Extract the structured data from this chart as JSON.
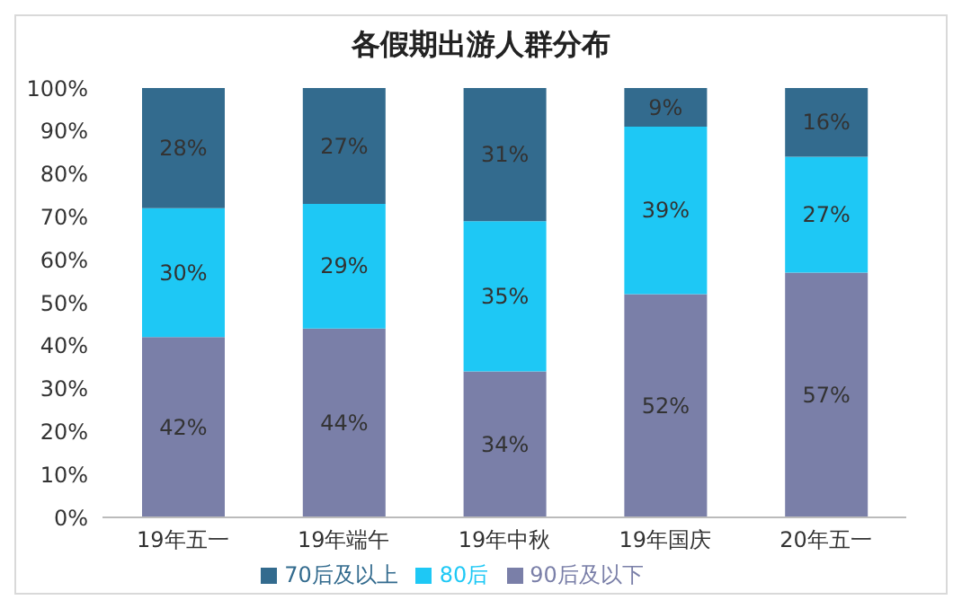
{
  "chart_data": {
    "type": "bar",
    "title": "各假期出游人群分布",
    "categories": [
      "19年五一",
      "19年端午",
      "19年中秋",
      "19年国庆",
      "20年五一"
    ],
    "stacked": true,
    "series": [
      {
        "name": "90后及以下",
        "color": "#7a7fa8",
        "values": [
          42,
          44,
          34,
          52,
          57
        ],
        "value_labels": [
          "42%",
          "44%",
          "34%",
          "52%",
          "57%"
        ]
      },
      {
        "name": "80后",
        "color": "#1ec8f5",
        "values": [
          30,
          29,
          35,
          39,
          27
        ],
        "value_labels": [
          "30%",
          "29%",
          "35%",
          "39%",
          "27%"
        ]
      },
      {
        "name": "70后及以上",
        "color": "#336b8e",
        "values": [
          28,
          27,
          31,
          9,
          16
        ],
        "value_labels": [
          "28%",
          "27%",
          "31%",
          "9%",
          "16%"
        ]
      }
    ],
    "ylim": [
      0,
      100
    ],
    "yticks": [
      {
        "value": 0,
        "label": "0%"
      },
      {
        "value": 10,
        "label": "10%"
      },
      {
        "value": 20,
        "label": "20%"
      },
      {
        "value": 30,
        "label": "30%"
      },
      {
        "value": 40,
        "label": "40%"
      },
      {
        "value": 50,
        "label": "50%"
      },
      {
        "value": 60,
        "label": "60%"
      },
      {
        "value": 70,
        "label": "70%"
      },
      {
        "value": 80,
        "label": "80%"
      },
      {
        "value": 90,
        "label": "90%"
      },
      {
        "value": 100,
        "label": "100%"
      }
    ],
    "legend": "bottom"
  }
}
